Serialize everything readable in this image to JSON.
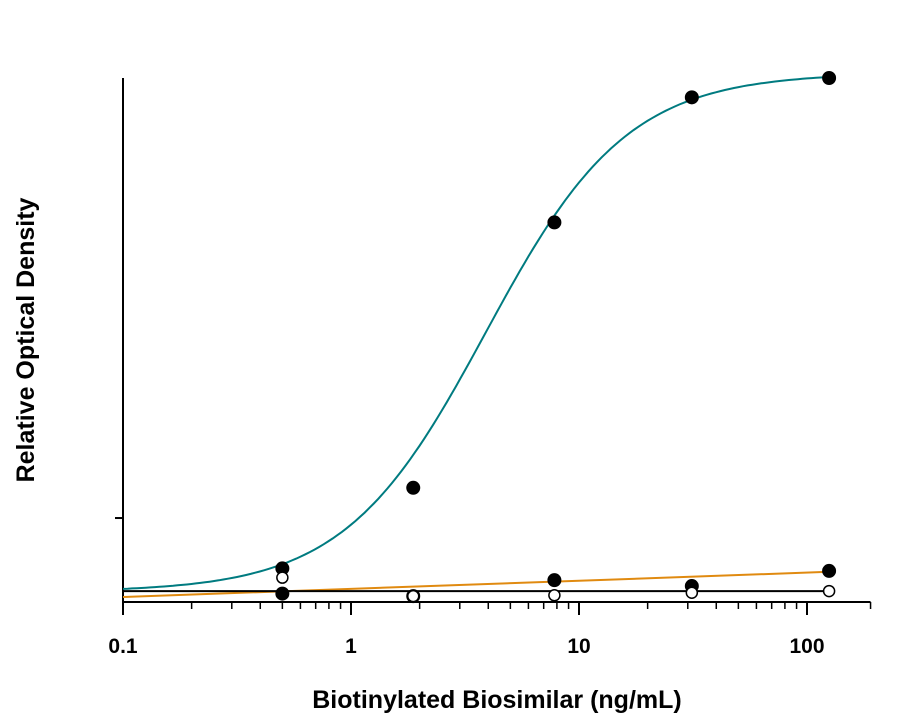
{
  "chart_data": {
    "type": "line",
    "title": "",
    "xlabel": "Biotinylated Biosimilar (ng/mL)",
    "ylabel": "Relative Optical Density",
    "x_scale": "log",
    "xlim": [
      0.1,
      190
    ],
    "ylim": [
      0,
      6.24
    ],
    "x_tick_labels": [
      "0.1",
      "1",
      "10",
      "100"
    ],
    "x_ticks": [
      0.1,
      1,
      10,
      100
    ],
    "y_ticks": [
      1
    ],
    "grid": false,
    "legend": "none",
    "series": [
      {
        "marker": "filled-circle",
        "color": "#007b80",
        "fit": "4PL",
        "fit_params": {
          "bottom": 0.12,
          "top": 6.3,
          "ec50": 3.9,
          "hill": 1.4
        },
        "x": [
          0.5,
          1.875,
          7.8,
          31.25,
          125
        ],
        "y": [
          0.4,
          1.36,
          4.52,
          6.01,
          6.24
        ]
      },
      {
        "marker": "filled-circle",
        "color": "#e08a10",
        "fit": "linear-log",
        "fit_line": {
          "x": [
            0.1,
            125
          ],
          "y": [
            0.06,
            0.36
          ]
        },
        "x": [
          0.5,
          1.875,
          7.8,
          31.25,
          125
        ],
        "y": [
          0.1,
          0.07,
          0.26,
          0.19,
          0.37
        ]
      },
      {
        "marker": "open-circle",
        "color": "#000000",
        "fit": "constant",
        "fit_line": {
          "x": [
            0.1,
            125
          ],
          "y": [
            0.13,
            0.13
          ]
        },
        "x": [
          0.5,
          1.875,
          7.8,
          31.25,
          125
        ],
        "y": [
          0.29,
          0.07,
          0.08,
          0.11,
          0.13
        ]
      }
    ]
  }
}
